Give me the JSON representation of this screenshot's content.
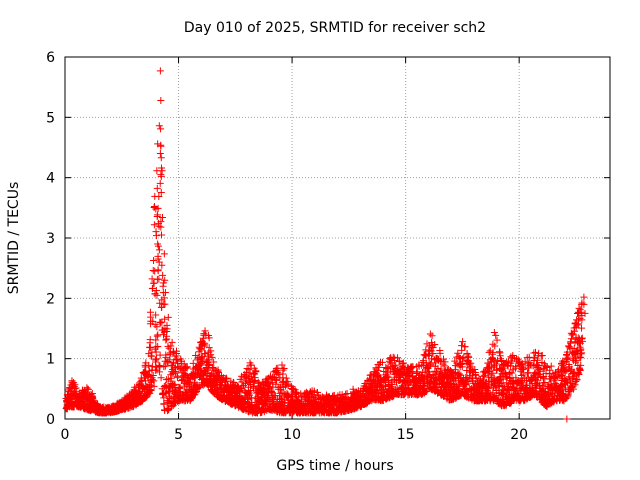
{
  "chart_data": {
    "type": "scatter",
    "title": "Day 010 of 2025, SRMTID for receiver sch2",
    "xlabel": "GPS time / hours",
    "ylabel": "SRMTID / TECUs",
    "xlim": [
      0,
      24.0
    ],
    "ylim": [
      0,
      6
    ],
    "xticks": [
      0,
      5,
      10,
      15,
      20
    ],
    "yticks": [
      0,
      1,
      2,
      3,
      4,
      5,
      6
    ],
    "grid": true,
    "marker": "+",
    "marker_color": "#ff0000",
    "envelope": {
      "x": [
        0.0,
        0.3,
        0.6,
        1.0,
        1.5,
        2.0,
        2.5,
        3.0,
        3.4,
        3.7,
        3.9,
        4.05,
        4.2,
        4.4,
        4.7,
        5.0,
        5.5,
        5.9,
        6.2,
        6.6,
        7.0,
        7.6,
        8.2,
        8.6,
        9.0,
        9.5,
        9.9,
        10.3,
        10.8,
        11.4,
        12.0,
        12.6,
        13.0,
        13.5,
        14.0,
        14.6,
        15.2,
        15.7,
        16.1,
        16.5,
        17.0,
        17.5,
        18.0,
        18.5,
        18.9,
        19.3,
        19.8,
        20.2,
        20.7,
        21.2,
        21.6,
        22.0,
        22.4,
        22.8
      ],
      "upper": [
        0.3,
        0.7,
        0.4,
        0.6,
        0.2,
        0.2,
        0.3,
        0.5,
        0.7,
        1.2,
        3.5,
        4.4,
        5.8,
        2.3,
        1.3,
        1.1,
        0.8,
        1.2,
        1.7,
        0.9,
        0.7,
        0.6,
        1.0,
        0.6,
        0.7,
        1.0,
        0.6,
        0.4,
        0.5,
        0.4,
        0.4,
        0.5,
        0.5,
        0.8,
        1.0,
        1.1,
        0.9,
        0.9,
        1.5,
        1.2,
        0.8,
        1.3,
        0.9,
        0.8,
        1.5,
        0.9,
        1.1,
        1.0,
        1.2,
        1.0,
        0.8,
        1.0,
        1.6,
        2.0
      ],
      "lower": [
        0.15,
        0.2,
        0.2,
        0.15,
        0.1,
        0.1,
        0.15,
        0.2,
        0.3,
        0.4,
        0.5,
        0.6,
        0.7,
        0.1,
        0.2,
        0.3,
        0.3,
        0.5,
        0.6,
        0.4,
        0.3,
        0.2,
        0.1,
        0.1,
        0.15,
        0.1,
        0.1,
        0.1,
        0.1,
        0.1,
        0.1,
        0.15,
        0.2,
        0.3,
        0.3,
        0.4,
        0.4,
        0.4,
        0.5,
        0.4,
        0.3,
        0.4,
        0.3,
        0.3,
        0.3,
        0.2,
        0.3,
        0.3,
        0.4,
        0.2,
        0.3,
        0.3,
        0.5,
        0.9
      ]
    },
    "outliers": [
      {
        "x": 4.2,
        "y": 5.77
      },
      {
        "x": 4.22,
        "y": 5.28
      },
      {
        "x": 4.2,
        "y": 4.4
      },
      {
        "x": 4.24,
        "y": 4.33
      },
      {
        "x": 4.22,
        "y": 4.05
      },
      {
        "x": 4.0,
        "y": 3.48
      },
      {
        "x": 4.1,
        "y": 3.49
      },
      {
        "x": 4.22,
        "y": 3.18
      },
      {
        "x": 4.25,
        "y": 3.05
      },
      {
        "x": 4.08,
        "y": 2.9
      },
      {
        "x": 4.15,
        "y": 2.6
      },
      {
        "x": 3.95,
        "y": 2.45
      },
      {
        "x": 4.3,
        "y": 2.38
      },
      {
        "x": 4.05,
        "y": 2.05
      },
      {
        "x": 4.35,
        "y": 1.9
      },
      {
        "x": 22.1,
        "y": 0.0
      },
      {
        "x": 22.85,
        "y": 2.02
      },
      {
        "x": 22.85,
        "y": 1.9
      },
      {
        "x": 22.9,
        "y": 1.75
      }
    ]
  }
}
